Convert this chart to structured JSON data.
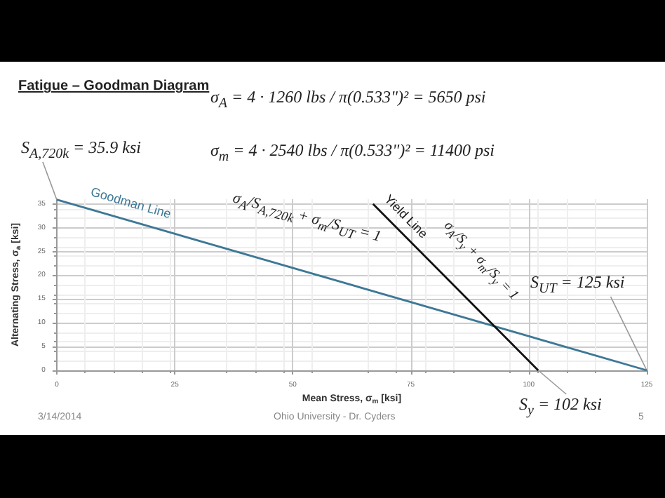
{
  "chart_data": {
    "type": "line",
    "title": "Fatigue – Goodman Diagram",
    "xlabel": "Mean Stress, σ$_{m}$ [ksi]",
    "ylabel": "Alternating Stress, σ$_{a}$ [ksi]",
    "series": [
      {
        "name": "Goodman Line",
        "color": "#3d7896",
        "x": [
          0,
          125
        ],
        "values": [
          35.9,
          0
        ]
      },
      {
        "name": "Yield Line",
        "color": "#111111",
        "x": [
          67,
          102
        ],
        "values": [
          35,
          0
        ]
      }
    ],
    "xlim": [
      0,
      125
    ],
    "ylim": [
      0,
      36
    ],
    "xticks": [
      0,
      25,
      50,
      75,
      100,
      125
    ],
    "yticks": [
      0,
      5,
      10,
      15,
      20,
      25,
      30,
      35
    ],
    "grid": true,
    "legend": false,
    "marker": "none",
    "line_style": "solid",
    "annotations": [
      "σ$_{A}$ = 4 · 1260 lbs / π(0.533\")² = 5650 psi",
      "σ$_{m}$ = 4 · 2540 lbs / π(0.533\")² = 11400 psi",
      "σ$_{A}$/S$_{A,720k}$ + σ$_{m}$/S$_{UT}$ = 1",
      "σ$_{A}$/S$_{y}$ + σ$_{m}$/S$_{y}$ = 1",
      {
        "text": "S$_{A,720k}$ = 35.9 ksi",
        "x": 0,
        "y": 35.9
      },
      {
        "text": "S$_{UT}$ = 125 ksi",
        "x": 125,
        "y": 0
      },
      {
        "text": "S$_{y}$ = 102 ksi",
        "x": 102,
        "y": 0
      },
      "3/14/2014",
      "Ohio University - Dr. Cyders",
      "5"
    ]
  }
}
